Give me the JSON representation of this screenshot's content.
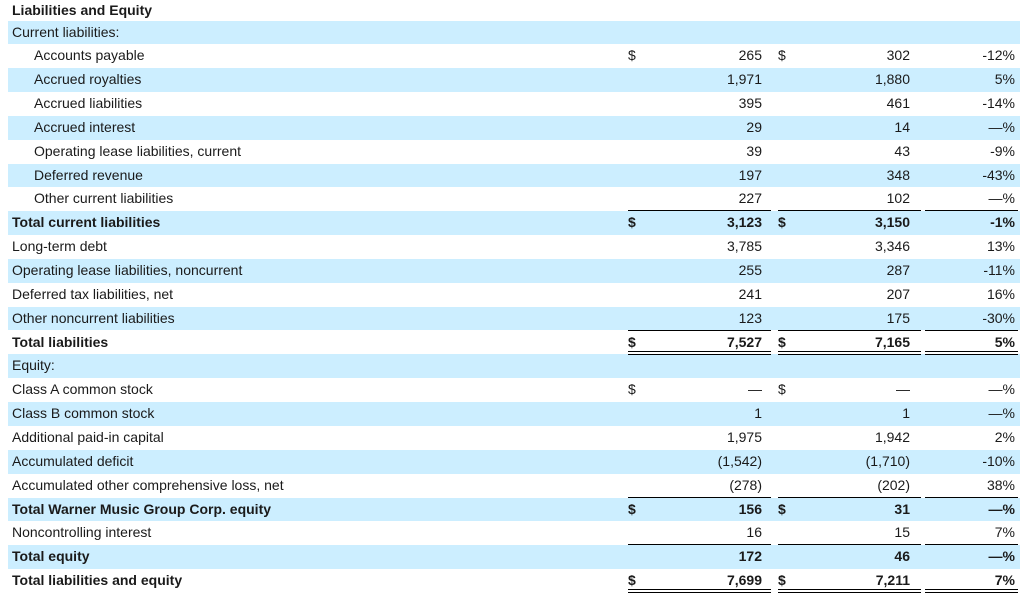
{
  "title": "Liabilities and Equity",
  "rows": [
    {
      "label": "Current liabilities:",
      "indent": false,
      "bold": false,
      "shade": true,
      "d1": "",
      "v1": "",
      "d2": "",
      "v2": "",
      "pct": ""
    },
    {
      "label": "Accounts payable",
      "indent": true,
      "bold": false,
      "shade": false,
      "d1": "$",
      "v1": "265",
      "d2": "$",
      "v2": "302",
      "pct": "-12%"
    },
    {
      "label": "Accrued royalties",
      "indent": true,
      "bold": false,
      "shade": true,
      "d1": "",
      "v1": "1,971",
      "d2": "",
      "v2": "1,880",
      "pct": "5%"
    },
    {
      "label": "Accrued liabilities",
      "indent": true,
      "bold": false,
      "shade": false,
      "d1": "",
      "v1": "395",
      "d2": "",
      "v2": "461",
      "pct": "-14%"
    },
    {
      "label": "Accrued interest",
      "indent": true,
      "bold": false,
      "shade": true,
      "d1": "",
      "v1": "29",
      "d2": "",
      "v2": "14",
      "pct": "—%"
    },
    {
      "label": "Operating lease liabilities, current",
      "indent": true,
      "bold": false,
      "shade": false,
      "d1": "",
      "v1": "39",
      "d2": "",
      "v2": "43",
      "pct": "-9%"
    },
    {
      "label": "Deferred revenue",
      "indent": true,
      "bold": false,
      "shade": true,
      "d1": "",
      "v1": "197",
      "d2": "",
      "v2": "348",
      "pct": "-43%"
    },
    {
      "label": "Other current liabilities",
      "indent": true,
      "bold": false,
      "shade": false,
      "d1": "",
      "v1": "227",
      "d2": "",
      "v2": "102",
      "pct": "—%"
    },
    {
      "label": "Total current liabilities",
      "indent": false,
      "bold": true,
      "shade": true,
      "d1": "$",
      "v1": "3,123",
      "d2": "$",
      "v2": "3,150",
      "pct": "-1%"
    },
    {
      "label": "Long-term debt",
      "indent": false,
      "bold": false,
      "shade": false,
      "d1": "",
      "v1": "3,785",
      "d2": "",
      "v2": "3,346",
      "pct": "13%"
    },
    {
      "label": "Operating lease liabilities, noncurrent",
      "indent": false,
      "bold": false,
      "shade": true,
      "d1": "",
      "v1": "255",
      "d2": "",
      "v2": "287",
      "pct": "-11%"
    },
    {
      "label": "Deferred tax liabilities, net",
      "indent": false,
      "bold": false,
      "shade": false,
      "d1": "",
      "v1": "241",
      "d2": "",
      "v2": "207",
      "pct": "16%"
    },
    {
      "label": "Other noncurrent liabilities",
      "indent": false,
      "bold": false,
      "shade": true,
      "d1": "",
      "v1": "123",
      "d2": "",
      "v2": "175",
      "pct": "-30%"
    },
    {
      "label": "Total liabilities",
      "indent": false,
      "bold": true,
      "shade": false,
      "d1": "$",
      "v1": "7,527",
      "d2": "$",
      "v2": "7,165",
      "pct": "5%"
    },
    {
      "label": "Equity:",
      "indent": false,
      "bold": false,
      "shade": true,
      "d1": "",
      "v1": "",
      "d2": "",
      "v2": "",
      "pct": ""
    },
    {
      "label": "Class A common stock",
      "indent": false,
      "bold": false,
      "shade": false,
      "d1": "$",
      "v1": "—",
      "d2": "$",
      "v2": "—",
      "pct": "—%"
    },
    {
      "label": "Class B common stock",
      "indent": false,
      "bold": false,
      "shade": true,
      "d1": "",
      "v1": "1",
      "d2": "",
      "v2": "1",
      "pct": "—%"
    },
    {
      "label": "Additional paid-in capital",
      "indent": false,
      "bold": false,
      "shade": false,
      "d1": "",
      "v1": "1,975",
      "d2": "",
      "v2": "1,942",
      "pct": "2%"
    },
    {
      "label": "Accumulated deficit",
      "indent": false,
      "bold": false,
      "shade": true,
      "d1": "",
      "v1": "(1,542)",
      "d2": "",
      "v2": "(1,710)",
      "pct": "-10%"
    },
    {
      "label": "Accumulated other comprehensive loss, net",
      "indent": false,
      "bold": false,
      "shade": false,
      "d1": "",
      "v1": "(278)",
      "d2": "",
      "v2": "(202)",
      "pct": "38%"
    },
    {
      "label": "Total Warner Music Group Corp. equity",
      "indent": false,
      "bold": true,
      "shade": true,
      "d1": "$",
      "v1": "156",
      "d2": "$",
      "v2": "31",
      "pct": "—%"
    },
    {
      "label": "Noncontrolling interest",
      "indent": false,
      "bold": false,
      "shade": false,
      "d1": "",
      "v1": "16",
      "d2": "",
      "v2": "15",
      "pct": "7%"
    },
    {
      "label": "Total equity",
      "indent": false,
      "bold": true,
      "shade": true,
      "d1": "",
      "v1": "172",
      "d2": "",
      "v2": "46",
      "pct": "—%"
    },
    {
      "label": "Total liabilities and equity",
      "indent": false,
      "bold": true,
      "shade": false,
      "d1": "$",
      "v1": "7,699",
      "d2": "$",
      "v2": "7,211",
      "pct": "7%"
    }
  ]
}
